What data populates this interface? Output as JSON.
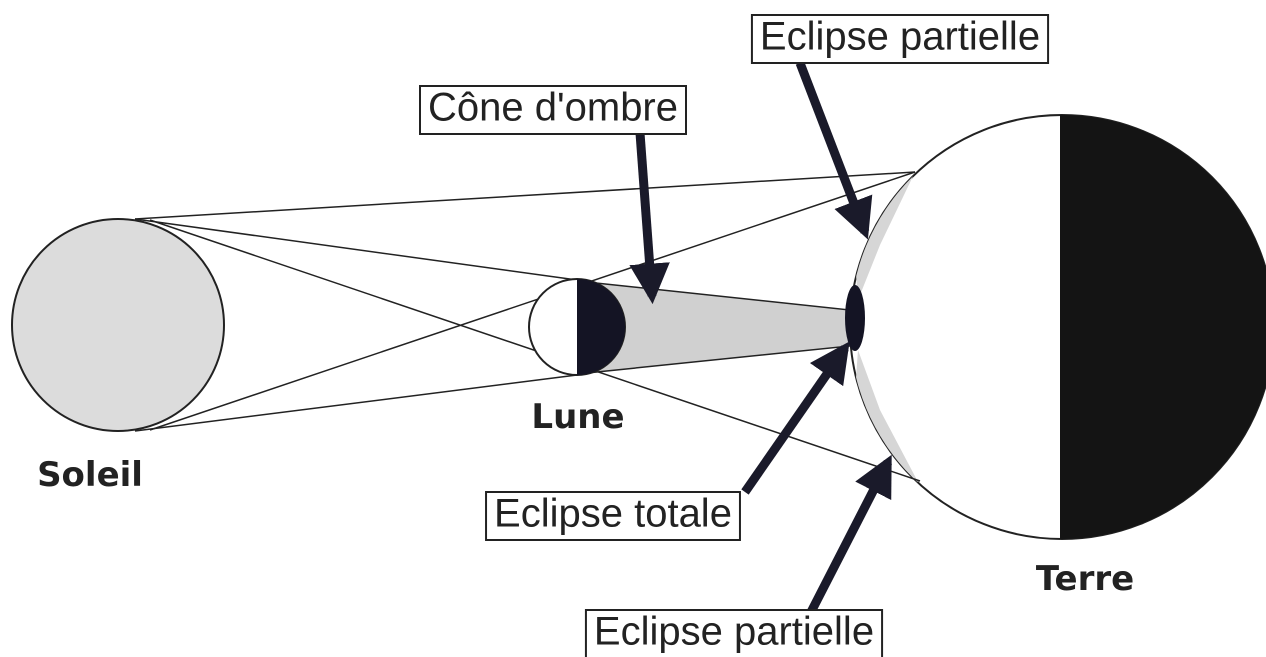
{
  "labels": {
    "sun": "Soleil",
    "moon": "Lune",
    "earth": "Terre"
  },
  "callouts": {
    "umbra": "Cône d'ombre",
    "partial_top": "Eclipse partielle",
    "total": "Eclipse totale",
    "partial_bottom": "Eclipse partielle"
  }
}
